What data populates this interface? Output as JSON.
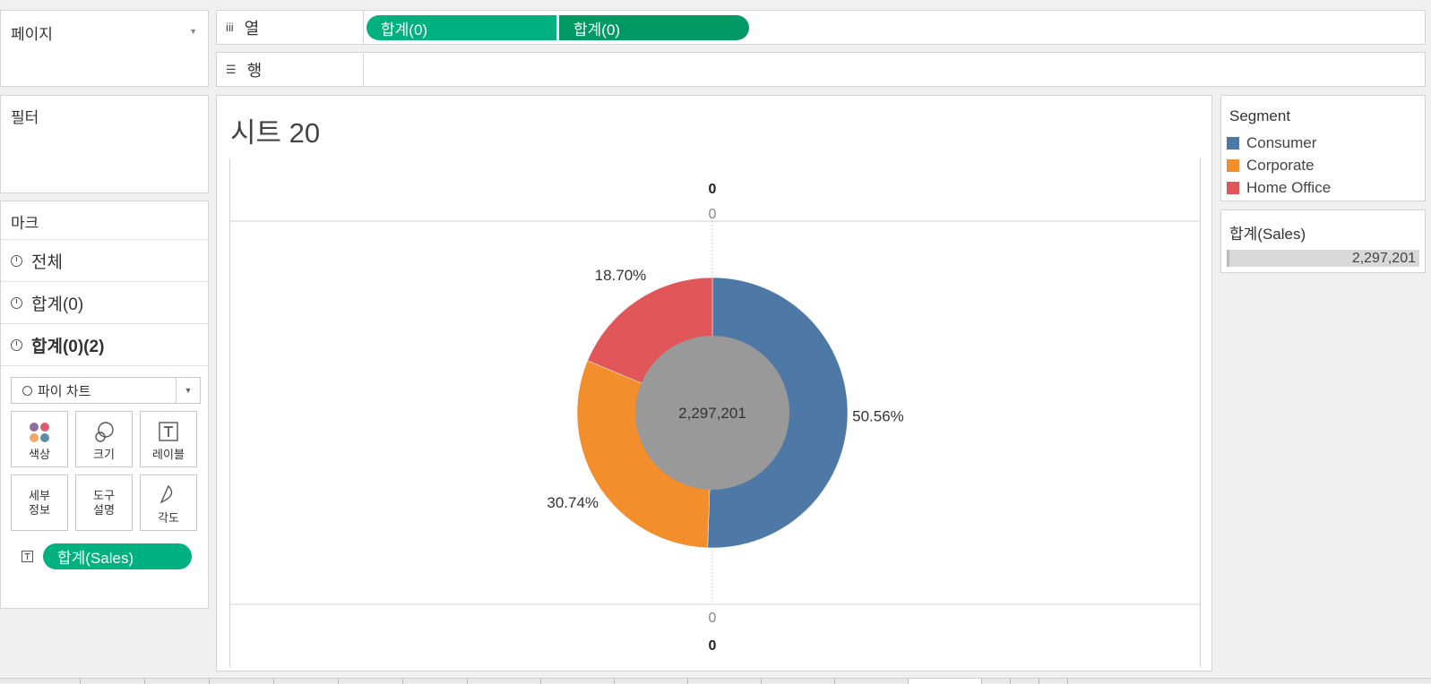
{
  "pages": {
    "title": "페이지"
  },
  "filters": {
    "title": "필터"
  },
  "marks": {
    "title": "마크",
    "layers": [
      "전체",
      "합계(0)",
      "합계(0)(2)"
    ],
    "mark_type": "파이 차트",
    "cards": [
      "색상",
      "크기",
      "레이블",
      "세부\n정보",
      "도구\n설명",
      "각도"
    ],
    "detail_pill": "합계(Sales)"
  },
  "columns_shelf": {
    "label": "열",
    "pills": [
      "합계(0)",
      "합계(0)"
    ]
  },
  "rows_shelf": {
    "label": "행"
  },
  "sheet": {
    "title": "시트 20"
  },
  "legend": {
    "title": "Segment",
    "items": [
      {
        "label": "Consumer",
        "color": "#4e79a7"
      },
      {
        "label": "Corporate",
        "color": "#f28e2b"
      },
      {
        "label": "Home Office",
        "color": "#e15759"
      }
    ]
  },
  "sales_legend": {
    "title": "합계(Sales)",
    "value": "2,297,201"
  },
  "chart_data": {
    "type": "pie",
    "categories": [
      "Consumer",
      "Corporate",
      "Home Office"
    ],
    "values": [
      50.56,
      30.74,
      18.7
    ],
    "slice_labels": [
      "50.56%",
      "30.74%",
      "18.70%"
    ],
    "colors": [
      "#4e79a7",
      "#f28e2b",
      "#e15759"
    ],
    "center_label": "2,297,201",
    "top_axis": {
      "header": "0",
      "tick": "0"
    },
    "bottom_axis": {
      "tick": "0",
      "header": "0"
    }
  }
}
